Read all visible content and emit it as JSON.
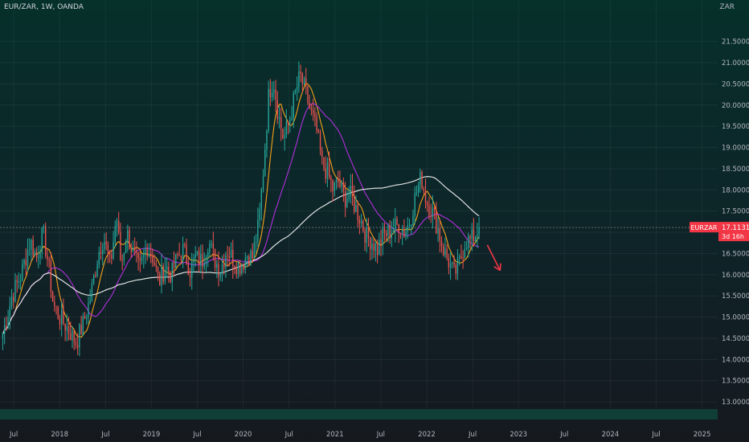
{
  "header": {
    "symbol_line": "EUR/ZAR, 1W, OANDA"
  },
  "price_axis": {
    "currency": "ZAR"
  },
  "price_tag": {
    "symbol": "EURZAR",
    "price": "17.11319",
    "countdown": "3d 16h"
  },
  "colors": {
    "up": "#26a69a",
    "down": "#ef5350",
    "ma_fast": "#f7a21b",
    "ma_mid": "#b02fdc",
    "ma_slow": "#f0f0f0",
    "arrow": "#f23645",
    "tag": "#f23645"
  },
  "chart_data": {
    "type": "candlestick",
    "title": "EUR/ZAR, 1W, OANDA",
    "ylim": [
      12.85,
      22.1
    ],
    "y_ticks": [
      "13.00000",
      "13.50000",
      "14.00000",
      "14.50000",
      "15.00000",
      "15.50000",
      "16.00000",
      "16.50000",
      "17.00000",
      "17.50000",
      "18.00000",
      "18.50000",
      "19.00000",
      "19.50000",
      "20.00000",
      "20.50000",
      "21.00000",
      "21.50000"
    ],
    "x_ticks": [
      "Jul",
      "2018",
      "Jul",
      "2019",
      "Jul",
      "2020",
      "Jul",
      "2021",
      "Jul",
      "2022",
      "Jul",
      "2023",
      "Jul",
      "2024",
      "Jul",
      "2025"
    ],
    "x_tick_dates": [
      2017.5,
      2018.0,
      2018.5,
      2019.0,
      2019.5,
      2020.0,
      2020.5,
      2021.0,
      2021.5,
      2022.0,
      2022.5,
      2023.0,
      2023.5,
      2024.0,
      2024.5,
      2025.0
    ],
    "xlim": [
      2017.35,
      2025.17
    ],
    "last_price": 17.11319,
    "price_path": [
      [
        2017.38,
        14.6
      ],
      [
        2017.48,
        15.5
      ],
      [
        2017.58,
        16.0
      ],
      [
        2017.68,
        16.8
      ],
      [
        2017.75,
        16.4
      ],
      [
        2017.82,
        17.0
      ],
      [
        2017.88,
        16.2
      ],
      [
        2017.93,
        15.3
      ],
      [
        2018.0,
        15.0
      ],
      [
        2018.1,
        14.7
      ],
      [
        2018.18,
        14.4
      ],
      [
        2018.25,
        14.8
      ],
      [
        2018.33,
        15.4
      ],
      [
        2018.42,
        16.5
      ],
      [
        2018.48,
        16.9
      ],
      [
        2018.55,
        16.2
      ],
      [
        2018.62,
        17.4
      ],
      [
        2018.67,
        16.2
      ],
      [
        2018.73,
        17.0
      ],
      [
        2018.8,
        16.5
      ],
      [
        2018.87,
        16.1
      ],
      [
        2018.95,
        16.7
      ],
      [
        2019.02,
        16.4
      ],
      [
        2019.08,
        15.8
      ],
      [
        2019.15,
        16.2
      ],
      [
        2019.22,
        16.0
      ],
      [
        2019.28,
        16.4
      ],
      [
        2019.35,
        16.6
      ],
      [
        2019.42,
        16.1
      ],
      [
        2019.48,
        16.4
      ],
      [
        2019.55,
        16.3
      ],
      [
        2019.62,
        16.8
      ],
      [
        2019.68,
        16.4
      ],
      [
        2019.75,
        16.1
      ],
      [
        2019.82,
        16.6
      ],
      [
        2019.88,
        16.4
      ],
      [
        2019.95,
        16.2
      ],
      [
        2020.0,
        16.3
      ],
      [
        2020.05,
        16.5
      ],
      [
        2020.1,
        16.4
      ],
      [
        2020.17,
        17.2
      ],
      [
        2020.22,
        18.5
      ],
      [
        2020.28,
        20.3
      ],
      [
        2020.33,
        20.6
      ],
      [
        2020.38,
        19.8
      ],
      [
        2020.44,
        19.2
      ],
      [
        2020.5,
        19.6
      ],
      [
        2020.56,
        20.2
      ],
      [
        2020.62,
        20.7
      ],
      [
        2020.68,
        20.3
      ],
      [
        2020.74,
        19.8
      ],
      [
        2020.8,
        19.4
      ],
      [
        2020.86,
        18.6
      ],
      [
        2020.92,
        18.4
      ],
      [
        2020.98,
        18.0
      ],
      [
        2021.04,
        18.2
      ],
      [
        2021.1,
        17.8
      ],
      [
        2021.16,
        17.9
      ],
      [
        2021.22,
        17.6
      ],
      [
        2021.28,
        17.3
      ],
      [
        2021.34,
        16.9
      ],
      [
        2021.4,
        16.8
      ],
      [
        2021.46,
        16.6
      ],
      [
        2021.52,
        16.9
      ],
      [
        2021.58,
        17.0
      ],
      [
        2021.64,
        17.1
      ],
      [
        2021.7,
        17.2
      ],
      [
        2021.76,
        17.0
      ],
      [
        2021.82,
        17.3
      ],
      [
        2021.88,
        17.9
      ],
      [
        2021.94,
        18.3
      ],
      [
        2022.0,
        17.7
      ],
      [
        2022.06,
        17.5
      ],
      [
        2022.12,
        17.1
      ],
      [
        2022.18,
        16.6
      ],
      [
        2022.24,
        16.3
      ],
      [
        2022.3,
        16.0
      ],
      [
        2022.36,
        16.3
      ],
      [
        2022.42,
        16.8
      ],
      [
        2022.48,
        16.8
      ],
      [
        2022.54,
        17.0
      ],
      [
        2022.57,
        17.11319
      ]
    ],
    "annotations": [
      {
        "type": "arrow",
        "from": [
          2022.66,
          16.7
        ],
        "to": [
          2022.8,
          16.1
        ]
      }
    ]
  }
}
